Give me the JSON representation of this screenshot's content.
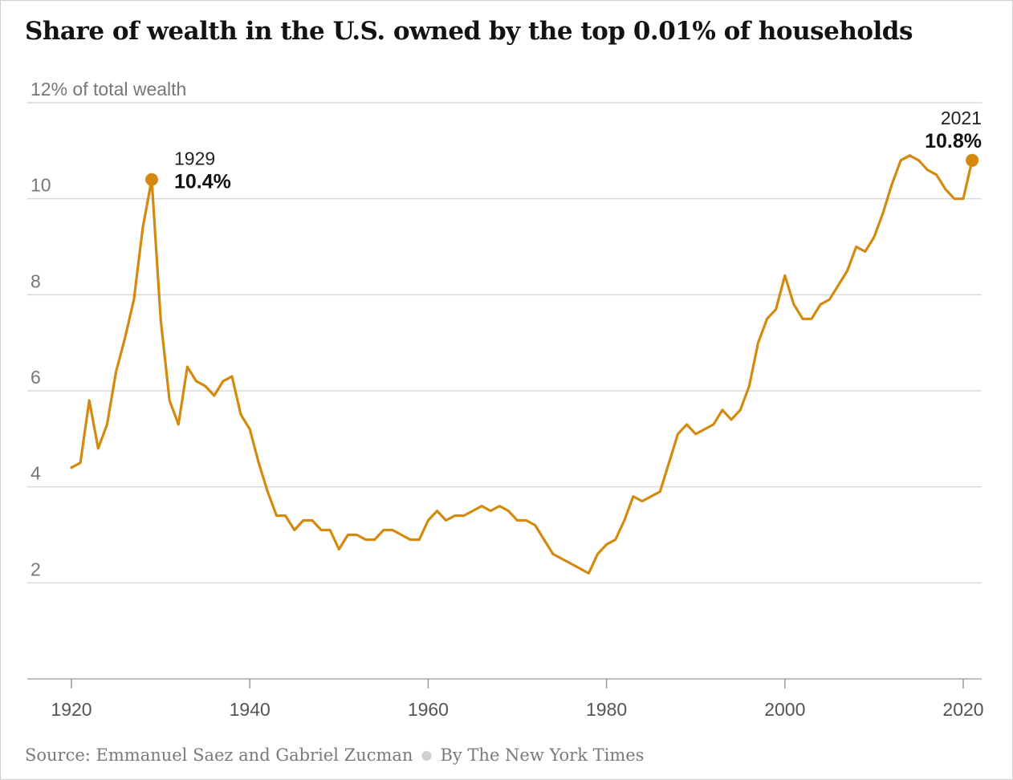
{
  "title": "Share of wealth in the U.S. owned by the top 0.01% of households",
  "footer": {
    "source": "Source: Emmanuel Saez and Gabriel Zucman",
    "byline": "By The New York Times"
  },
  "chart_data": {
    "type": "line",
    "ylabel": "12% of total wealth",
    "xlim": [
      1919,
      2022
    ],
    "ylim": [
      0,
      12
    ],
    "y_ticks": [
      {
        "value": 12,
        "label": "12% of total wealth"
      },
      {
        "value": 10,
        "label": "10"
      },
      {
        "value": 8,
        "label": "8"
      },
      {
        "value": 6,
        "label": "6"
      },
      {
        "value": 4,
        "label": "4"
      },
      {
        "value": 2,
        "label": "2"
      }
    ],
    "x_ticks": [
      1920,
      1940,
      1960,
      1980,
      2000,
      2020
    ],
    "grid": true,
    "line_color": "#d48a0f",
    "series": [
      {
        "x": [
          1920,
          1921,
          1922,
          1923,
          1924,
          1925,
          1926,
          1927,
          1928,
          1929,
          1930,
          1931,
          1932,
          1933,
          1934,
          1935,
          1936,
          1937,
          1938,
          1939,
          1940,
          1941,
          1942,
          1943,
          1944,
          1945,
          1946,
          1947,
          1948,
          1949,
          1950,
          1951,
          1952,
          1953,
          1954,
          1955,
          1956,
          1957,
          1958,
          1959,
          1960,
          1961,
          1962,
          1963,
          1964,
          1965,
          1966,
          1967,
          1968,
          1969,
          1970,
          1971,
          1972,
          1973,
          1974,
          1975,
          1976,
          1977,
          1978,
          1979,
          1980,
          1981,
          1982,
          1983,
          1984,
          1985,
          1986,
          1987,
          1988,
          1989,
          1990,
          1991,
          1992,
          1993,
          1994,
          1995,
          1996,
          1997,
          1998,
          1999,
          2000,
          2001,
          2002,
          2003,
          2004,
          2005,
          2006,
          2007,
          2008,
          2009,
          2010,
          2011,
          2012,
          2013,
          2014,
          2015,
          2016,
          2017,
          2018,
          2019,
          2020,
          2021
        ],
        "y": [
          4.4,
          4.5,
          5.8,
          4.8,
          5.3,
          6.4,
          7.1,
          7.9,
          9.4,
          10.4,
          7.5,
          5.8,
          5.3,
          6.5,
          6.2,
          6.1,
          5.9,
          6.2,
          6.3,
          5.5,
          5.2,
          4.5,
          3.9,
          3.4,
          3.4,
          3.1,
          3.3,
          3.3,
          3.1,
          3.1,
          2.7,
          3.0,
          3.0,
          2.9,
          2.9,
          3.1,
          3.1,
          3.0,
          2.9,
          2.9,
          3.3,
          3.5,
          3.3,
          3.4,
          3.4,
          3.5,
          3.6,
          3.5,
          3.6,
          3.5,
          3.3,
          3.3,
          3.2,
          2.9,
          2.6,
          2.5,
          2.4,
          2.3,
          2.2,
          2.6,
          2.8,
          2.9,
          3.3,
          3.8,
          3.7,
          3.8,
          3.9,
          4.5,
          5.1,
          5.3,
          5.1,
          5.2,
          5.3,
          5.6,
          5.4,
          5.6,
          6.1,
          7.0,
          7.5,
          7.7,
          8.4,
          7.8,
          7.5,
          7.5,
          7.8,
          7.9,
          8.2,
          8.5,
          9.0,
          8.9,
          9.2,
          9.7,
          10.3,
          10.8,
          10.9,
          10.8,
          10.6,
          10.5,
          10.2,
          10.0,
          10.0,
          10.8
        ]
      }
    ],
    "annotations": [
      {
        "x": 1929,
        "y": 10.4,
        "year": "1929",
        "value": "10.4%"
      },
      {
        "x": 2021,
        "y": 10.8,
        "year": "2021",
        "value": "10.8%"
      }
    ]
  }
}
